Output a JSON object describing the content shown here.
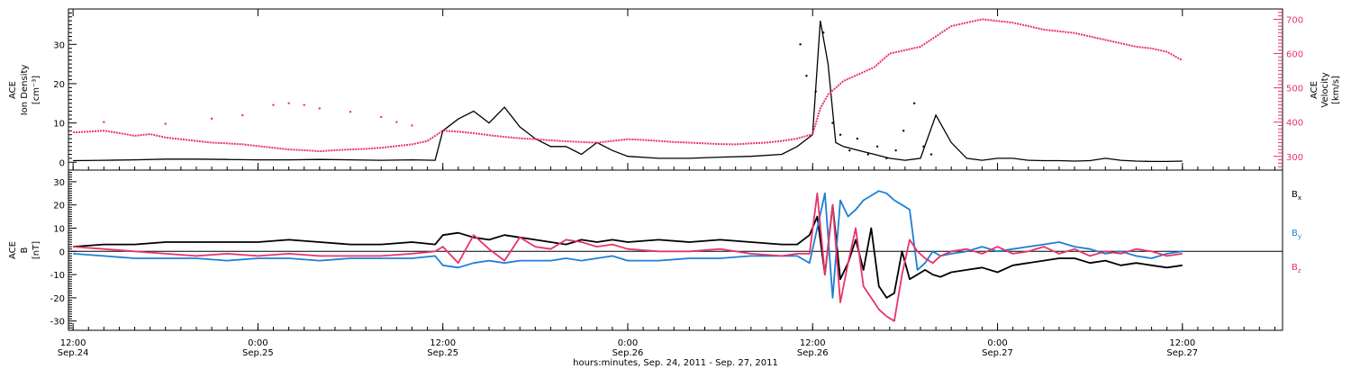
{
  "colors": {
    "bx": "#000000",
    "by": "#1e7fd6",
    "bz": "#e8336b",
    "velocity": "#e8336b",
    "density": "#000000"
  },
  "xaxis": {
    "title": "hours:minutes, Sep. 24, 2011 - Sep. 27, 2011",
    "ticks": [
      {
        "hour": 0,
        "time": "12:00",
        "date": "Sep.24"
      },
      {
        "hour": 12,
        "time": "0:00",
        "date": "Sep.25"
      },
      {
        "hour": 24,
        "time": "12:00",
        "date": "Sep.25"
      },
      {
        "hour": 36,
        "time": "0:00",
        "date": "Sep.26"
      },
      {
        "hour": 48,
        "time": "12:00",
        "date": "Sep.26"
      },
      {
        "hour": 60,
        "time": "0:00",
        "date": "Sep.27"
      },
      {
        "hour": 72,
        "time": "12:00",
        "date": "Sep.27"
      }
    ]
  },
  "chart_data": [
    {
      "type": "scatter",
      "panel": "top",
      "x_unit": "hours after Sep.24 12:00",
      "xlim": [
        -0.3,
        78.5
      ],
      "left_axis": {
        "label_line1": "ACE",
        "label_line2": "Ion Density",
        "label_line3": "[cm⁻³]",
        "ylim": [
          -2,
          39
        ],
        "ticks": [
          "0",
          "10",
          "20",
          "30"
        ]
      },
      "right_axis": {
        "label_line1": "ACE",
        "label_line2": "Velocity",
        "label_line3": "[km/s]",
        "ylim": [
          260,
          730
        ],
        "ticks": [
          "300",
          "400",
          "500",
          "600",
          "700"
        ]
      },
      "series": [
        {
          "key": "density",
          "axis": "left",
          "x": [
            0,
            2,
            4,
            6,
            8,
            10,
            12,
            14,
            16,
            18,
            20,
            22,
            23.5,
            24,
            25,
            26,
            27,
            28,
            29,
            30,
            31,
            32,
            33,
            34,
            35,
            36,
            38,
            40,
            42,
            44,
            46,
            47,
            48,
            48.5,
            49,
            49.5,
            50,
            51,
            52,
            53,
            54,
            55,
            56,
            57,
            58,
            59,
            60,
            61,
            62,
            63,
            64,
            65,
            66,
            67,
            68,
            69,
            70,
            71,
            72
          ],
          "y": [
            0.4,
            0.5,
            0.6,
            0.8,
            0.8,
            0.7,
            0.6,
            0.6,
            0.7,
            0.6,
            0.5,
            0.6,
            0.5,
            8,
            11,
            13,
            10,
            14,
            9,
            6,
            4,
            4,
            2,
            5,
            3,
            1.5,
            1,
            1,
            1.3,
            1.5,
            2,
            4,
            7,
            36,
            25,
            5,
            4,
            3,
            2,
            1,
            0.5,
            1,
            12,
            5,
            1,
            0.5,
            1,
            1,
            0.5,
            0.4,
            0.4,
            0.3,
            0.4,
            1,
            0.5,
            0.3,
            0.2,
            0.2,
            0.3
          ]
        },
        {
          "key": "velocity",
          "axis": "right",
          "x": [
            0,
            1,
            2,
            3,
            4,
            5,
            6,
            7,
            8,
            9,
            10,
            11,
            12,
            13,
            14,
            15,
            16,
            17,
            18,
            19,
            20,
            21,
            22,
            23,
            24,
            25,
            26,
            27,
            28,
            29,
            30,
            31,
            32,
            33,
            34,
            35,
            36,
            37,
            38,
            39,
            40,
            41,
            42,
            43,
            44,
            45,
            46,
            47,
            48,
            48.5,
            49,
            50,
            51,
            52,
            53,
            54,
            55,
            56,
            57,
            58,
            59,
            60,
            61,
            62,
            63,
            64,
            65,
            66,
            67,
            68,
            69,
            70,
            71,
            72
          ],
          "y": [
            370,
            372,
            375,
            368,
            360,
            365,
            355,
            350,
            345,
            340,
            338,
            335,
            330,
            325,
            320,
            318,
            315,
            318,
            320,
            322,
            325,
            330,
            335,
            345,
            375,
            372,
            368,
            362,
            357,
            353,
            350,
            347,
            344,
            342,
            340,
            345,
            350,
            348,
            345,
            342,
            340,
            338,
            336,
            335,
            338,
            340,
            345,
            352,
            365,
            440,
            480,
            520,
            540,
            560,
            600,
            610,
            620,
            650,
            680,
            690,
            700,
            695,
            690,
            680,
            670,
            665,
            660,
            650,
            640,
            630,
            620,
            615,
            605,
            580
          ]
        },
        {
          "key": "density_scatter",
          "axis": "left",
          "x": [
            47.2,
            47.6,
            48.2,
            48.7,
            49.3,
            49.8,
            50.4,
            50.9,
            51.6,
            52.2,
            52.8,
            53.4,
            53.9,
            54.6,
            55.2,
            55.7
          ],
          "y": [
            30,
            22,
            18,
            33,
            10,
            7,
            3,
            6,
            2,
            4,
            1,
            3,
            8,
            15,
            4,
            2
          ]
        },
        {
          "key": "velocity_scatter",
          "axis": "right",
          "x": [
            2,
            6,
            9,
            11,
            13,
            14,
            15,
            16,
            18,
            20,
            21,
            22
          ],
          "y": [
            400,
            395,
            410,
            420,
            450,
            455,
            450,
            440,
            430,
            415,
            400,
            390
          ]
        }
      ]
    },
    {
      "type": "line",
      "panel": "bottom",
      "x_unit": "hours after Sep.24 12:00",
      "xlim": [
        -0.3,
        78.5
      ],
      "y_axis": {
        "label_line1": "ACE",
        "label_line2": "B",
        "label_line3": "[nT]",
        "ylim": [
          -34,
          35
        ],
        "ticks": [
          "30",
          "20",
          "10",
          "0",
          "-10",
          "-20",
          "-30"
        ]
      },
      "legend": [
        {
          "key": "bx",
          "label": "B",
          "sub": "x"
        },
        {
          "key": "by",
          "label": "B",
          "sub": "y"
        },
        {
          "key": "bz",
          "label": "B",
          "sub": "z"
        }
      ],
      "series": [
        {
          "key": "bx",
          "x": [
            0,
            2,
            4,
            6,
            8,
            10,
            12,
            14,
            16,
            18,
            20,
            22,
            23.5,
            24,
            25,
            26,
            27,
            28,
            29,
            30,
            31,
            32,
            33,
            34,
            35,
            36,
            38,
            40,
            42,
            44,
            46,
            47,
            47.8,
            48.3,
            48.8,
            49.3,
            49.8,
            50.3,
            50.8,
            51.3,
            51.8,
            52.3,
            52.8,
            53.3,
            53.8,
            54.3,
            54.8,
            55.3,
            55.8,
            56.3,
            57,
            58,
            59,
            60,
            61,
            62,
            63,
            64,
            65,
            66,
            67,
            68,
            69,
            70,
            71,
            72
          ],
          "y": [
            2,
            3,
            3,
            4,
            4,
            4,
            4,
            5,
            4,
            3,
            3,
            4,
            3,
            7,
            8,
            6,
            5,
            7,
            6,
            5,
            4,
            3,
            5,
            4,
            5,
            4,
            5,
            4,
            5,
            4,
            3,
            3,
            7,
            15,
            -10,
            20,
            -12,
            -5,
            5,
            -8,
            10,
            -15,
            -20,
            -18,
            0,
            -12,
            -10,
            -8,
            -10,
            -11,
            -9,
            -8,
            -7,
            -9,
            -6,
            -5,
            -4,
            -3,
            -3,
            -5,
            -4,
            -6,
            -5,
            -6,
            -7,
            -6
          ]
        },
        {
          "key": "by",
          "x": [
            0,
            2,
            4,
            6,
            8,
            10,
            12,
            14,
            16,
            18,
            20,
            22,
            23.5,
            24,
            25,
            26,
            27,
            28,
            29,
            30,
            31,
            32,
            33,
            34,
            35,
            36,
            38,
            40,
            42,
            44,
            46,
            47,
            47.8,
            48.3,
            48.8,
            49.3,
            49.8,
            50.3,
            50.8,
            51.3,
            51.8,
            52.3,
            52.8,
            53.3,
            53.8,
            54.3,
            54.8,
            55.3,
            55.8,
            56.3,
            57,
            58,
            59,
            60,
            61,
            62,
            63,
            64,
            65,
            66,
            67,
            68,
            69,
            70,
            71,
            72
          ],
          "y": [
            -1,
            -2,
            -3,
            -3,
            -3,
            -4,
            -3,
            -3,
            -4,
            -3,
            -3,
            -3,
            -2,
            -6,
            -7,
            -5,
            -4,
            -5,
            -4,
            -4,
            -4,
            -3,
            -4,
            -3,
            -2,
            -4,
            -4,
            -3,
            -3,
            -2,
            -2,
            -2,
            -5,
            10,
            25,
            -20,
            22,
            15,
            18,
            22,
            24,
            26,
            25,
            22,
            20,
            18,
            -8,
            -5,
            0,
            -2,
            -1,
            0,
            2,
            0,
            1,
            2,
            3,
            4,
            2,
            1,
            -1,
            0,
            -2,
            -3,
            -1,
            0
          ]
        },
        {
          "key": "bz",
          "x": [
            0,
            2,
            4,
            6,
            8,
            10,
            12,
            14,
            16,
            18,
            20,
            22,
            23.5,
            24,
            25,
            26,
            27,
            28,
            29,
            30,
            31,
            32,
            33,
            34,
            35,
            36,
            38,
            40,
            42,
            44,
            46,
            47,
            47.8,
            48.3,
            48.8,
            49.3,
            49.8,
            50.3,
            50.8,
            51.3,
            51.8,
            52.3,
            52.8,
            53.3,
            53.8,
            54.3,
            54.8,
            55.3,
            55.8,
            56.3,
            57,
            58,
            59,
            60,
            61,
            62,
            63,
            64,
            65,
            66,
            67,
            68,
            69,
            70,
            71,
            72
          ],
          "y": [
            2,
            1,
            0,
            -1,
            -2,
            -1,
            -2,
            -1,
            -2,
            -2,
            -2,
            -1,
            0,
            2,
            -5,
            7,
            1,
            -4,
            6,
            2,
            1,
            5,
            4,
            2,
            3,
            1,
            0,
            0,
            1,
            -1,
            -2,
            -1,
            -1,
            25,
            -10,
            20,
            -22,
            -5,
            10,
            -15,
            -20,
            -25,
            -28,
            -30,
            -10,
            5,
            0,
            -3,
            -5,
            -2,
            0,
            1,
            -1,
            2,
            -1,
            0,
            2,
            -1,
            1,
            -2,
            0,
            -1,
            1,
            0,
            -2,
            -1
          ]
        }
      ]
    }
  ]
}
